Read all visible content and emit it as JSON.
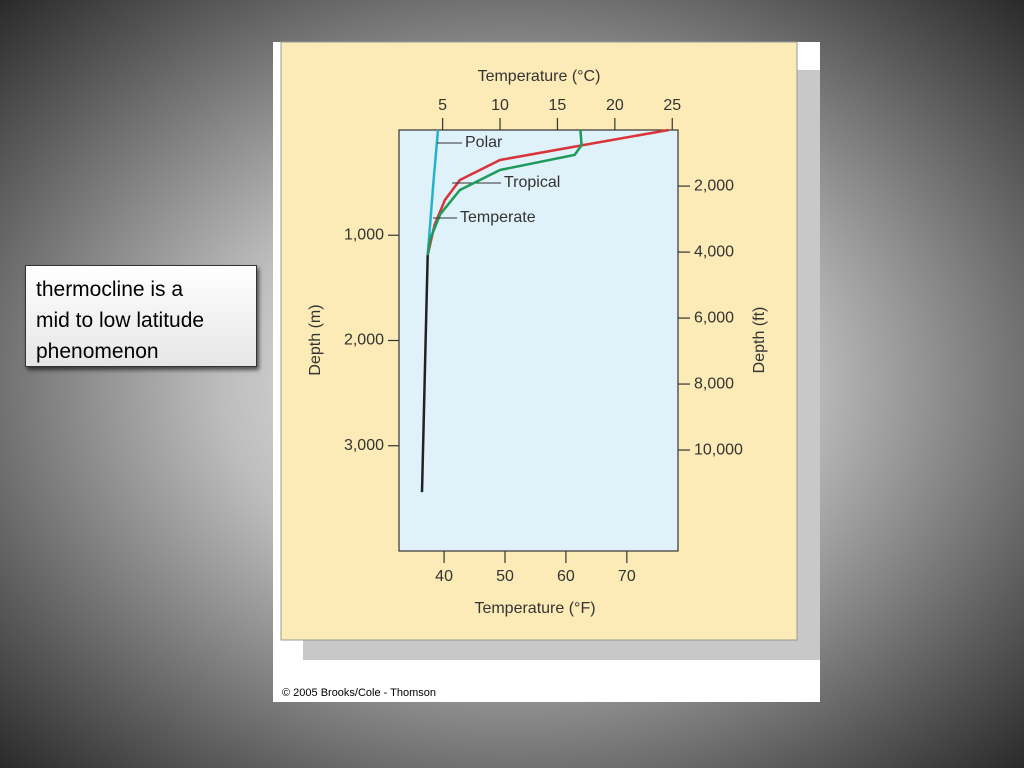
{
  "slide": {
    "text_box": "thermocline is a mid to low latitude phenomenon",
    "copyright": "© 2005 Brooks/Cole - Thomson"
  },
  "chart_data": {
    "type": "line",
    "x_label": "Temperature (°C)",
    "x2_label": "Temperature (°F)",
    "y_label": "Depth (m)",
    "y2_label": "Depth (ft)",
    "xlim": [
      1.2,
      25.5
    ],
    "xticks": [
      5,
      10,
      15,
      20,
      25
    ],
    "x2lim": [
      32.6,
      78.4
    ],
    "x2ticks": [
      40,
      50,
      60,
      70
    ],
    "ylim": [
      0,
      4000
    ],
    "y_inverted": true,
    "yticks": [
      {
        "value": 1000,
        "label": "1,000"
      },
      {
        "value": 2000,
        "label": "2,000"
      },
      {
        "value": 3000,
        "label": "3,000"
      }
    ],
    "y2lim": [
      300,
      13060
    ],
    "y2ticks": [
      {
        "value": 2000,
        "label": "2,000"
      },
      {
        "value": 4000,
        "label": "4,000"
      },
      {
        "value": 6000,
        "label": "6,000"
      },
      {
        "value": 8000,
        "label": "8,000"
      },
      {
        "value": 10000,
        "label": "10,000"
      }
    ],
    "series": [
      {
        "name": "Polar",
        "color": "#25b2cc",
        "x": [
          4.6,
          4.2,
          3.7
        ],
        "values": [
          0,
          500,
          1190
        ]
      },
      {
        "name": "Tropical",
        "color": "#d9343a",
        "x": [
          24.7,
          18.7,
          10,
          6.5,
          5.2,
          4.3,
          3.7
        ],
        "values": [
          0,
          115,
          285,
          475,
          665,
          900,
          1190
        ]
      },
      {
        "name": "Temperate",
        "color": "#1e9a5a",
        "x": [
          17,
          17.1,
          16.5,
          10,
          6.5,
          4.8,
          3.9,
          3.7
        ],
        "values": [
          0,
          143,
          237,
          380,
          570,
          800,
          1040,
          1190
        ]
      },
      {
        "color": "#222222",
        "x": [
          3.7,
          3.6,
          3.2
        ],
        "values": [
          1190,
          1615,
          3440
        ]
      }
    ]
  }
}
